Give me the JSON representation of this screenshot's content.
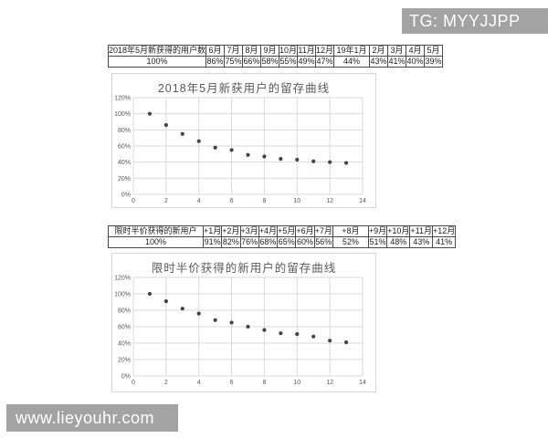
{
  "watermarks": {
    "top_right": "TG: MYYJJPP",
    "bottom_left": "www.lieyouhr.com"
  },
  "colors": {
    "banner_bg": "#a3a3a3",
    "banner_text": "#ffffff",
    "point": "#35455b",
    "grid": "#d9d9d9",
    "chart_border": "#d6d6d6",
    "axis_text": "#595959",
    "table_border": "#4a4a4a"
  },
  "tables": [
    {
      "header": [
        "2018年5月新获得的用户数",
        "6月",
        "7月",
        "8月",
        "9月",
        "10月",
        "11月",
        "12月",
        "19年1月",
        "2月",
        "3月",
        "4月",
        "5月"
      ],
      "values": [
        "100%",
        "86%",
        "75%",
        "66%",
        "58%",
        "55%",
        "49%",
        "47%",
        "44%",
        "43%",
        "41%",
        "40%",
        "39%"
      ]
    },
    {
      "header": [
        "限时半价获得的新用户",
        "+1月",
        "+2月",
        "+3月",
        "+4月",
        "+5月",
        "+6月",
        "+7月",
        "+8月",
        "+9月",
        "+10月",
        "+11月",
        "+12月"
      ],
      "values": [
        "100%",
        "91%",
        "82%",
        "76%",
        "68%",
        "65%",
        "60%",
        "56%",
        "52%",
        "51%",
        "48%",
        "43%",
        "41%"
      ]
    }
  ],
  "chart_data": [
    {
      "type": "scatter",
      "title": "2018年5月新获用户的留存曲线",
      "x": [
        1,
        2,
        3,
        4,
        5,
        6,
        7,
        8,
        9,
        10,
        11,
        12,
        13
      ],
      "y": [
        100,
        86,
        75,
        66,
        58,
        55,
        49,
        47,
        44,
        43,
        41,
        40,
        39
      ],
      "xlim": [
        0,
        14
      ],
      "ylim": [
        0,
        120
      ],
      "x_ticks": [
        0,
        2,
        4,
        6,
        8,
        10,
        12,
        14
      ],
      "y_ticks": [
        0,
        20,
        40,
        60,
        80,
        100,
        120
      ],
      "y_tick_suffix": "%",
      "grid": true,
      "legend": "none",
      "ylabel": "",
      "xlabel": ""
    },
    {
      "type": "scatter",
      "title": "限时半价获得的新用户的留存曲线",
      "x": [
        1,
        2,
        3,
        4,
        5,
        6,
        7,
        8,
        9,
        10,
        11,
        12,
        13
      ],
      "y": [
        100,
        91,
        82,
        76,
        68,
        65,
        60,
        56,
        52,
        51,
        48,
        43,
        41
      ],
      "xlim": [
        0,
        14
      ],
      "ylim": [
        0,
        120
      ],
      "x_ticks": [
        0,
        2,
        4,
        6,
        8,
        10,
        12,
        14
      ],
      "y_ticks": [
        0,
        20,
        40,
        60,
        80,
        100,
        120
      ],
      "y_tick_suffix": "%",
      "grid": true,
      "legend": "none",
      "ylabel": "",
      "xlabel": ""
    }
  ]
}
